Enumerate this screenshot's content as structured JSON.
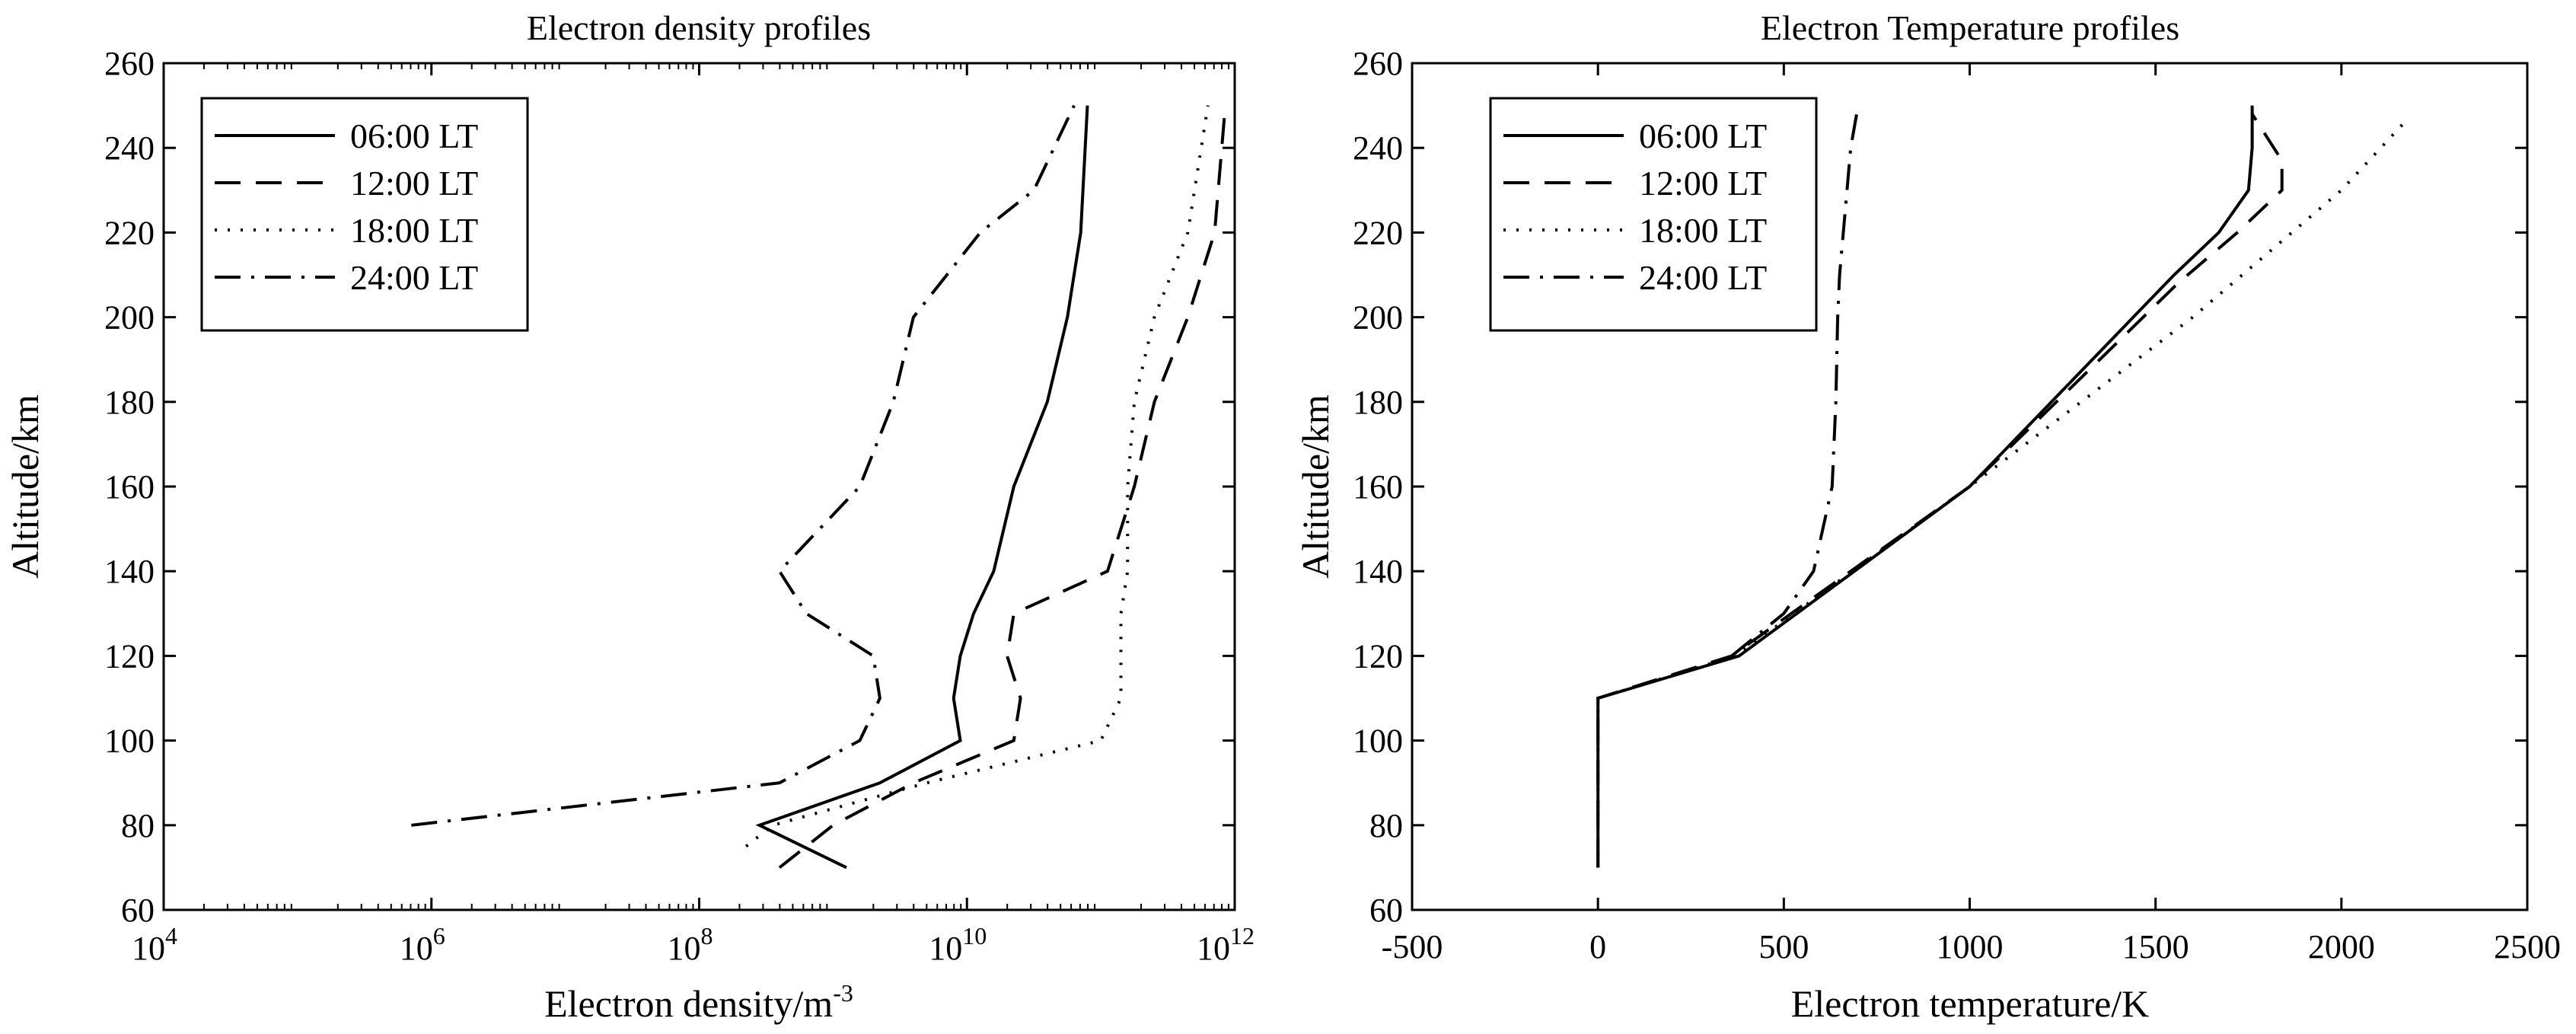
{
  "chart_data": [
    {
      "type": "line",
      "title": "Electron density profiles",
      "xlabel": "Electron density/m",
      "xlabel_superscript": "-3",
      "ylabel": "Altitude/km",
      "xscale": "log",
      "xlim_exponent": [
        4,
        12
      ],
      "ylim": [
        60,
        260
      ],
      "xticks": [
        {
          "value": 4,
          "base": "10",
          "exp": "4"
        },
        {
          "value": 6,
          "base": "10",
          "exp": "6"
        },
        {
          "value": 8,
          "base": "10",
          "exp": "8"
        },
        {
          "value": 10,
          "base": "10",
          "exp": "10"
        },
        {
          "value": 12,
          "base": "10",
          "exp": "12"
        }
      ],
      "yticks": [
        "60",
        "80",
        "100",
        "120",
        "140",
        "160",
        "180",
        "200",
        "220",
        "240",
        "260"
      ],
      "grid": false,
      "legend_position": "top-left",
      "series": [
        {
          "name": "06:00 LT",
          "style": "solid",
          "log10_density": [
            9.1,
            8.45,
            9.35,
            9.95,
            9.9,
            9.95,
            10.05,
            10.2,
            10.35,
            10.6,
            10.75,
            10.85,
            10.9
          ],
          "altitude": [
            70,
            80,
            90,
            100,
            110,
            120,
            130,
            140,
            160,
            180,
            200,
            220,
            250
          ]
        },
        {
          "name": "12:00 LT",
          "style": "dashed",
          "log10_density": [
            8.6,
            9.0,
            9.6,
            10.35,
            10.4,
            10.3,
            10.35,
            11.05,
            11.25,
            11.4,
            11.65,
            11.85,
            11.93
          ],
          "altitude": [
            70,
            80,
            90,
            100,
            110,
            120,
            130,
            140,
            160,
            180,
            200,
            220,
            250
          ]
        },
        {
          "name": "18:00 LT",
          "style": "dotted",
          "log10_density": [
            8.35,
            8.55,
            9.7,
            11.0,
            11.15,
            11.15,
            11.15,
            11.2,
            11.2,
            11.25,
            11.4,
            11.65,
            11.8
          ],
          "altitude": [
            75,
            80,
            90,
            100,
            110,
            120,
            130,
            140,
            160,
            180,
            200,
            220,
            250
          ]
        },
        {
          "name": "24:00 LT",
          "style": "dashdot",
          "log10_density": [
            5.85,
            8.6,
            9.2,
            9.35,
            9.3,
            8.8,
            8.6,
            9.2,
            9.45,
            9.6,
            10.1,
            10.5,
            10.8
          ],
          "altitude": [
            80,
            90,
            100,
            110,
            120,
            130,
            140,
            160,
            180,
            200,
            220,
            230,
            250
          ]
        }
      ]
    },
    {
      "type": "line",
      "title": "Electron Temperature profiles",
      "xlabel": "Electron temperature/K",
      "ylabel": "Altitude/km",
      "xlim": [
        -500,
        2500
      ],
      "ylim": [
        60,
        260
      ],
      "xticks": [
        "-500",
        "0",
        "500",
        "1000",
        "1500",
        "2000",
        "2500"
      ],
      "yticks": [
        "60",
        "80",
        "100",
        "120",
        "140",
        "160",
        "180",
        "200",
        "220",
        "240",
        "260"
      ],
      "grid": false,
      "legend_position": "top-left",
      "series": [
        {
          "name": "06:00 LT",
          "style": "solid",
          "temperature": [
            0,
            0,
            380,
            1000,
            1550,
            1670,
            1750,
            1760,
            1760
          ],
          "altitude": [
            70,
            110,
            120,
            160,
            210,
            220,
            230,
            240,
            250
          ]
        },
        {
          "name": "12:00 LT",
          "style": "dashed",
          "temperature": [
            0,
            0,
            360,
            1000,
            1560,
            1720,
            1840,
            1840,
            1760
          ],
          "altitude": [
            70,
            110,
            120,
            160,
            208,
            220,
            230,
            237,
            248
          ]
        },
        {
          "name": "18:00 LT",
          "style": "dotted",
          "temperature": [
            0,
            0,
            370,
            1000,
            1600,
            1800,
            2000,
            2180
          ],
          "altitude": [
            70,
            110,
            120,
            160,
            200,
            215,
            230,
            247
          ]
        },
        {
          "name": "24:00 LT",
          "style": "dashdot",
          "temperature": [
            360,
            500,
            580,
            630,
            640,
            645,
            650,
            660,
            680,
            700
          ],
          "altitude": [
            120,
            130,
            140,
            160,
            180,
            200,
            210,
            220,
            240,
            250
          ]
        }
      ]
    }
  ]
}
